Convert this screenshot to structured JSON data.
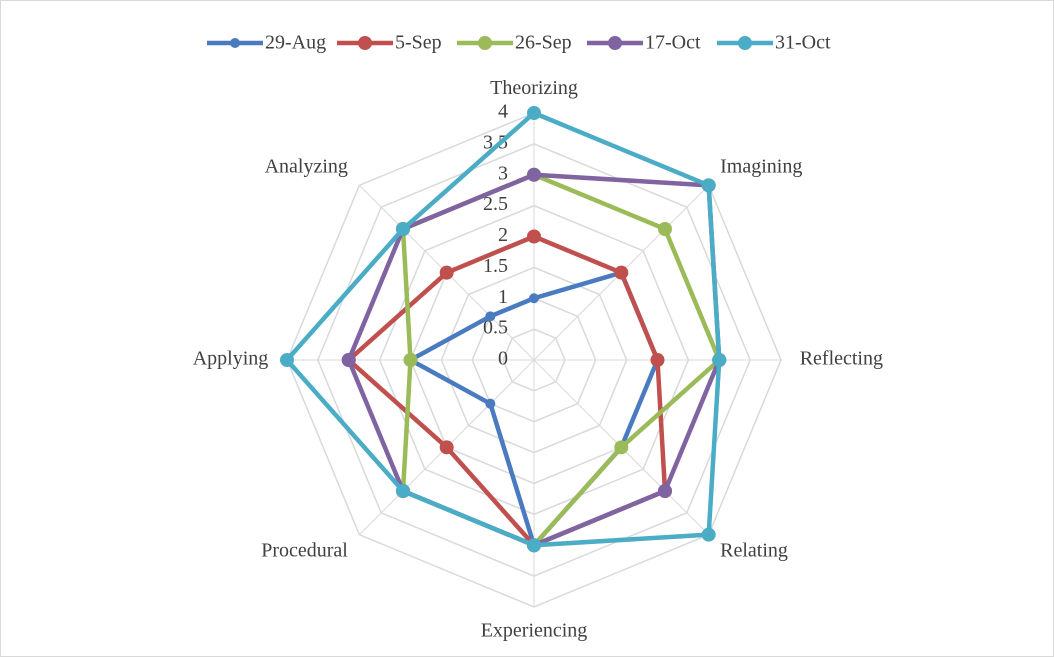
{
  "chart_data": {
    "type": "radar",
    "categories": [
      "Theorizing",
      "Imagining",
      "Reflecting",
      "Relating",
      "Experiencing",
      "Procedural",
      "Applying",
      "Analyzing"
    ],
    "series": [
      {
        "name": "29-Aug",
        "color": "#4a7bc0",
        "values": [
          1,
          2,
          2,
          2,
          3,
          1,
          2,
          1
        ]
      },
      {
        "name": "5-Sep",
        "color": "#c0504d",
        "values": [
          2,
          2,
          2,
          3,
          3,
          2,
          3,
          2
        ]
      },
      {
        "name": "26-Sep",
        "color": "#9bbb59",
        "values": [
          3,
          3,
          3,
          2,
          3,
          3,
          2,
          3
        ]
      },
      {
        "name": "17-Oct",
        "color": "#8064a2",
        "values": [
          3,
          4,
          3,
          3,
          3,
          3,
          3,
          3
        ]
      },
      {
        "name": "31-Oct",
        "color": "#4bacc6",
        "values": [
          4,
          4,
          3,
          4,
          3,
          3,
          4,
          3
        ]
      }
    ],
    "ylim": [
      0,
      4
    ],
    "yticks": [
      0,
      0.5,
      1,
      1.5,
      2,
      2.5,
      3,
      3.5,
      4
    ],
    "grid": true,
    "legend": "top"
  }
}
